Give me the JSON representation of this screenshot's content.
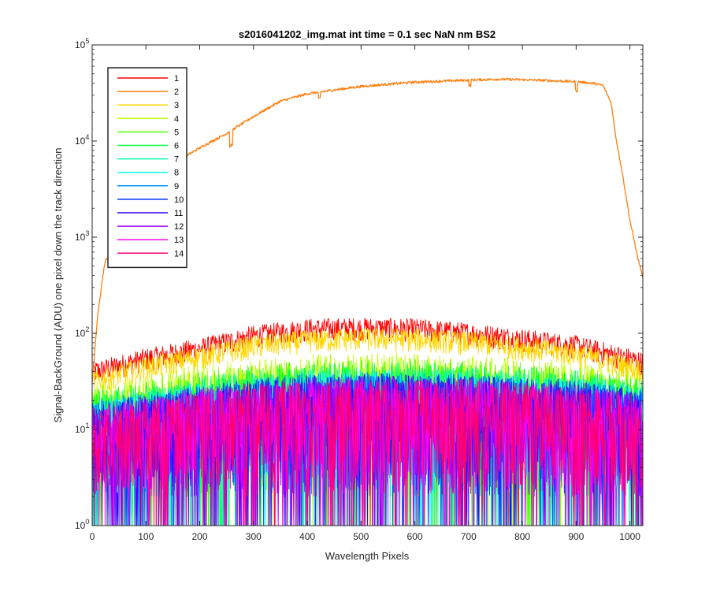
{
  "chart_data": {
    "type": "line",
    "title": "s2016041202_img.mat int time = 0.1 sec  NaN nm BS2",
    "xlabel": "Wavelength Pixels",
    "ylabel": "Signal-BackGround (ADU) one pixel down the track direction",
    "xlim": [
      0,
      1024
    ],
    "ylim": [
      1,
      100000
    ],
    "yscale": "log",
    "x_ticks": [
      "0",
      "100",
      "200",
      "300",
      "400",
      "500",
      "600",
      "700",
      "800",
      "900",
      "1000"
    ],
    "y_ticks": [
      {
        "base": "10",
        "exp": "0"
      },
      {
        "base": "10",
        "exp": "1"
      },
      {
        "base": "10",
        "exp": "2"
      },
      {
        "base": "10",
        "exp": "3"
      },
      {
        "base": "10",
        "exp": "4"
      },
      {
        "base": "10",
        "exp": "5"
      }
    ],
    "grid": false,
    "legend_position": "top-left",
    "series": [
      {
        "name": "1",
        "color": "#ff0000",
        "profile": [
          [
            0,
            40
          ],
          [
            100,
            55
          ],
          [
            200,
            70
          ],
          [
            300,
            95
          ],
          [
            400,
            112
          ],
          [
            500,
            115
          ],
          [
            600,
            112
          ],
          [
            700,
            102
          ],
          [
            800,
            88
          ],
          [
            900,
            75
          ],
          [
            1000,
            55
          ],
          [
            1024,
            50
          ]
        ]
      },
      {
        "name": "2",
        "color": "#ff7f0e",
        "profile": [
          [
            0,
            30
          ],
          [
            10,
            150
          ],
          [
            20,
            400
          ],
          [
            25,
            600
          ],
          [
            40,
            620
          ],
          [
            60,
            900
          ],
          [
            80,
            1800
          ],
          [
            100,
            3500
          ],
          [
            120,
            5500
          ],
          [
            150,
            6500
          ],
          [
            175,
            7000
          ],
          [
            200,
            8500
          ],
          [
            250,
            12000
          ],
          [
            300,
            18000
          ],
          [
            350,
            26000
          ],
          [
            400,
            31000
          ],
          [
            450,
            34000
          ],
          [
            500,
            37000
          ],
          [
            550,
            39000
          ],
          [
            600,
            41000
          ],
          [
            650,
            42000
          ],
          [
            700,
            43000
          ],
          [
            750,
            44000
          ],
          [
            800,
            43500
          ],
          [
            850,
            42500
          ],
          [
            900,
            41500
          ],
          [
            930,
            40000
          ],
          [
            950,
            38000
          ],
          [
            965,
            25000
          ],
          [
            975,
            10000
          ],
          [
            985,
            5000
          ],
          [
            1000,
            1500
          ],
          [
            1015,
            600
          ],
          [
            1024,
            380
          ]
        ]
      },
      {
        "name": "3",
        "color": "#ffd700",
        "profile": [
          [
            0,
            32
          ],
          [
            100,
            45
          ],
          [
            200,
            58
          ],
          [
            300,
            75
          ],
          [
            400,
            85
          ],
          [
            500,
            90
          ],
          [
            600,
            88
          ],
          [
            700,
            82
          ],
          [
            800,
            72
          ],
          [
            900,
            62
          ],
          [
            1000,
            45
          ],
          [
            1024,
            42
          ]
        ]
      },
      {
        "name": "4",
        "color": "#bfff00",
        "profile": [
          [
            0,
            25
          ],
          [
            100,
            30
          ],
          [
            200,
            38
          ],
          [
            300,
            44
          ],
          [
            400,
            48
          ],
          [
            500,
            50
          ],
          [
            600,
            50
          ],
          [
            700,
            48
          ],
          [
            800,
            45
          ],
          [
            900,
            40
          ],
          [
            1000,
            33
          ],
          [
            1024,
            30
          ]
        ]
      },
      {
        "name": "5",
        "color": "#55ff00",
        "profile": [
          [
            0,
            22
          ],
          [
            100,
            26
          ],
          [
            200,
            32
          ],
          [
            300,
            38
          ],
          [
            400,
            42
          ],
          [
            500,
            44
          ],
          [
            600,
            44
          ],
          [
            700,
            42
          ],
          [
            800,
            40
          ],
          [
            900,
            36
          ],
          [
            1000,
            30
          ],
          [
            1024,
            28
          ]
        ]
      },
      {
        "name": "6",
        "color": "#00ff40",
        "profile": [
          [
            0,
            20
          ],
          [
            100,
            24
          ],
          [
            200,
            29
          ],
          [
            300,
            34
          ],
          [
            400,
            38
          ],
          [
            500,
            40
          ],
          [
            600,
            40
          ],
          [
            700,
            38
          ],
          [
            800,
            36
          ],
          [
            900,
            33
          ],
          [
            1000,
            28
          ],
          [
            1024,
            26
          ]
        ]
      },
      {
        "name": "7",
        "color": "#00ffa5",
        "profile": [
          [
            0,
            18
          ],
          [
            100,
            22
          ],
          [
            200,
            27
          ],
          [
            300,
            31
          ],
          [
            400,
            35
          ],
          [
            500,
            37
          ],
          [
            600,
            37
          ],
          [
            700,
            35
          ],
          [
            800,
            33
          ],
          [
            900,
            30
          ],
          [
            1000,
            26
          ],
          [
            1024,
            24
          ]
        ]
      },
      {
        "name": "8",
        "color": "#00ffff",
        "profile": [
          [
            0,
            17
          ],
          [
            100,
            21
          ],
          [
            200,
            25
          ],
          [
            300,
            29
          ],
          [
            400,
            33
          ],
          [
            500,
            34
          ],
          [
            600,
            34
          ],
          [
            700,
            33
          ],
          [
            800,
            31
          ],
          [
            900,
            28
          ],
          [
            1000,
            24
          ],
          [
            1024,
            22
          ]
        ]
      },
      {
        "name": "9",
        "color": "#0095ff",
        "profile": [
          [
            0,
            16
          ],
          [
            100,
            20
          ],
          [
            200,
            24
          ],
          [
            300,
            28
          ],
          [
            400,
            31
          ],
          [
            500,
            32
          ],
          [
            600,
            32
          ],
          [
            700,
            31
          ],
          [
            800,
            29
          ],
          [
            900,
            27
          ],
          [
            1000,
            23
          ],
          [
            1024,
            21
          ]
        ]
      },
      {
        "name": "10",
        "color": "#0030ff",
        "profile": [
          [
            0,
            15
          ],
          [
            100,
            19
          ],
          [
            200,
            23
          ],
          [
            300,
            27
          ],
          [
            400,
            30
          ],
          [
            500,
            31
          ],
          [
            600,
            31
          ],
          [
            700,
            30
          ],
          [
            800,
            28
          ],
          [
            900,
            26
          ],
          [
            1000,
            22
          ],
          [
            1024,
            20
          ]
        ]
      },
      {
        "name": "11",
        "color": "#3500ff",
        "profile": [
          [
            0,
            15
          ],
          [
            100,
            18
          ],
          [
            200,
            22
          ],
          [
            300,
            26
          ],
          [
            400,
            29
          ],
          [
            500,
            30
          ],
          [
            600,
            30
          ],
          [
            700,
            29
          ],
          [
            800,
            27
          ],
          [
            900,
            25
          ],
          [
            1000,
            21
          ],
          [
            1024,
            19
          ]
        ]
      },
      {
        "name": "12",
        "color": "#a000ff",
        "profile": [
          [
            0,
            14
          ],
          [
            100,
            18
          ],
          [
            200,
            22
          ],
          [
            300,
            25
          ],
          [
            400,
            28
          ],
          [
            500,
            29
          ],
          [
            600,
            29
          ],
          [
            700,
            28
          ],
          [
            800,
            26
          ],
          [
            900,
            24
          ],
          [
            1000,
            20
          ],
          [
            1024,
            18
          ]
        ]
      },
      {
        "name": "13",
        "color": "#ff00f0",
        "profile": [
          [
            0,
            14
          ],
          [
            100,
            17
          ],
          [
            200,
            21
          ],
          [
            300,
            24
          ],
          [
            400,
            27
          ],
          [
            500,
            28
          ],
          [
            600,
            28
          ],
          [
            700,
            27
          ],
          [
            800,
            25
          ],
          [
            900,
            23
          ],
          [
            1000,
            19
          ],
          [
            1024,
            18
          ]
        ]
      },
      {
        "name": "14",
        "color": "#ff0070",
        "profile": [
          [
            0,
            13
          ],
          [
            100,
            17
          ],
          [
            200,
            20
          ],
          [
            300,
            24
          ],
          [
            400,
            26
          ],
          [
            500,
            27
          ],
          [
            600,
            27
          ],
          [
            700,
            26
          ],
          [
            800,
            25
          ],
          [
            900,
            22
          ],
          [
            1000,
            19
          ],
          [
            1024,
            17
          ]
        ]
      }
    ]
  }
}
